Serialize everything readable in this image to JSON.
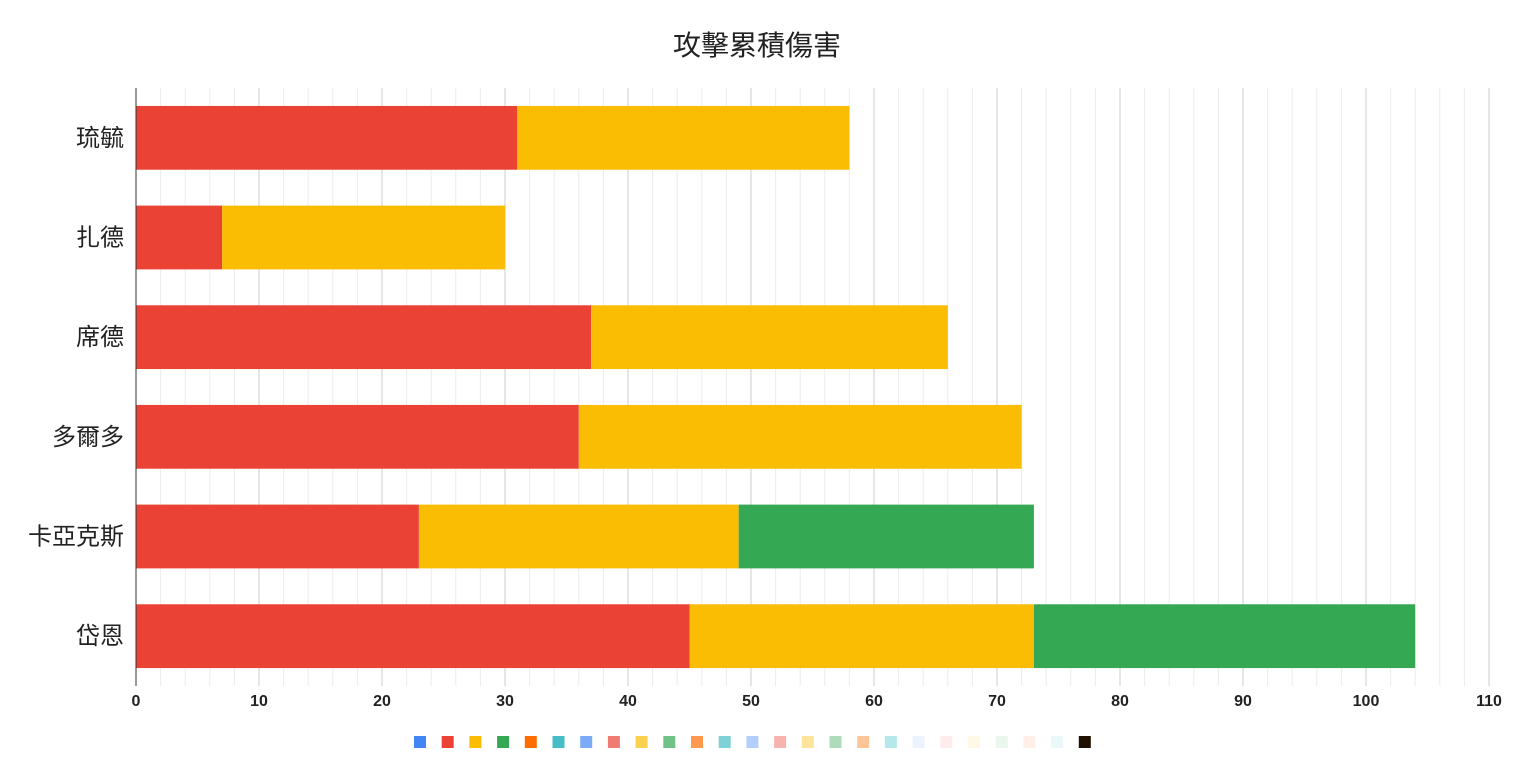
{
  "chart_data": {
    "type": "bar",
    "orientation": "horizontal",
    "stacked": true,
    "title": "攻擊累積傷害",
    "categories": [
      "琉毓",
      "扎德",
      "席德",
      "多爾多",
      "卡亞克斯",
      "岱恩"
    ],
    "series": [
      {
        "color": "#4285f4",
        "values": [
          0,
          0,
          0,
          0,
          0,
          0
        ]
      },
      {
        "color": "#ea4335",
        "values": [
          31,
          7,
          37,
          36,
          23,
          45
        ]
      },
      {
        "color": "#fbbc04",
        "values": [
          27,
          23,
          29,
          36,
          26,
          28
        ]
      },
      {
        "color": "#34a853",
        "values": [
          0,
          0,
          0,
          0,
          24,
          31
        ]
      }
    ],
    "xlim": [
      0,
      110
    ],
    "xticks": [
      0,
      10,
      20,
      30,
      40,
      50,
      60,
      70,
      80,
      90,
      100,
      110
    ],
    "grid": true,
    "legend_position": "bottom",
    "legend_colors": [
      "#4285f4",
      "#ea4335",
      "#fbbc04",
      "#34a853",
      "#ff6d01",
      "#46bdc6",
      "#7baaf7",
      "#f07b72",
      "#fcd04f",
      "#71c287",
      "#ff994d",
      "#7ed1d7",
      "#b3cefb",
      "#f7b4ae",
      "#fde49b",
      "#aedcba",
      "#ffc599",
      "#b5e8eb",
      "#ecf3fe",
      "#fdeceb",
      "#fff8e6",
      "#ebf6ee",
      "#ffefe6",
      "#ebf8f9",
      "#1f1000"
    ]
  }
}
